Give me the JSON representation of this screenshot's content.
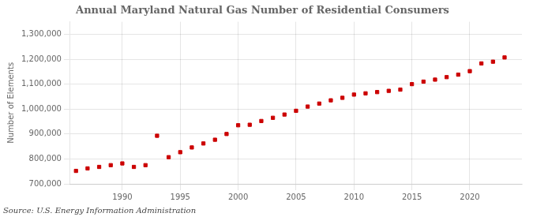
{
  "chart_data": {
    "type": "scatter",
    "title": "Annual Maryland Natural Gas Number of Residential Consumers",
    "ylabel": "Number of Elements",
    "annotations": [
      "Source: U.S. Energy Information Administration"
    ],
    "x": [
      1986,
      1987,
      1988,
      1989,
      1990,
      1991,
      1992,
      1993,
      1994,
      1995,
      1996,
      1997,
      1998,
      1999,
      2000,
      2001,
      2002,
      2003,
      2004,
      2005,
      2006,
      2007,
      2008,
      2009,
      2010,
      2011,
      2012,
      2013,
      2014,
      2015,
      2016,
      2017,
      2018,
      2019,
      2020,
      2021,
      2022,
      2023
    ],
    "values": [
      752000,
      762000,
      768000,
      775000,
      782000,
      768000,
      775000,
      893000,
      807000,
      827000,
      846000,
      862000,
      877000,
      900000,
      935000,
      937000,
      952000,
      965000,
      978000,
      993000,
      1010000,
      1022000,
      1035000,
      1045000,
      1058000,
      1063000,
      1068000,
      1073000,
      1078000,
      1100000,
      1110000,
      1118000,
      1128000,
      1138000,
      1152000,
      1183000,
      1190000,
      1207000
    ],
    "color": "#cc0000",
    "marker": "square",
    "xlim": [
      1985.5,
      2024.5
    ],
    "xticks": [
      1990,
      1995,
      2000,
      2005,
      2010,
      2015,
      2020
    ],
    "ylim": [
      700000,
      1350000
    ],
    "yticks": [
      {
        "value": 700000,
        "label": "700,000"
      },
      {
        "value": 800000,
        "label": "800,000"
      },
      {
        "value": 900000,
        "label": "900,000"
      },
      {
        "value": 1000000,
        "label": "1,000,000"
      },
      {
        "value": 1100000,
        "label": "1,100,000"
      },
      {
        "value": 1200000,
        "label": "1,200,000"
      },
      {
        "value": 1300000,
        "label": "1,300,000"
      }
    ],
    "grid": true
  }
}
